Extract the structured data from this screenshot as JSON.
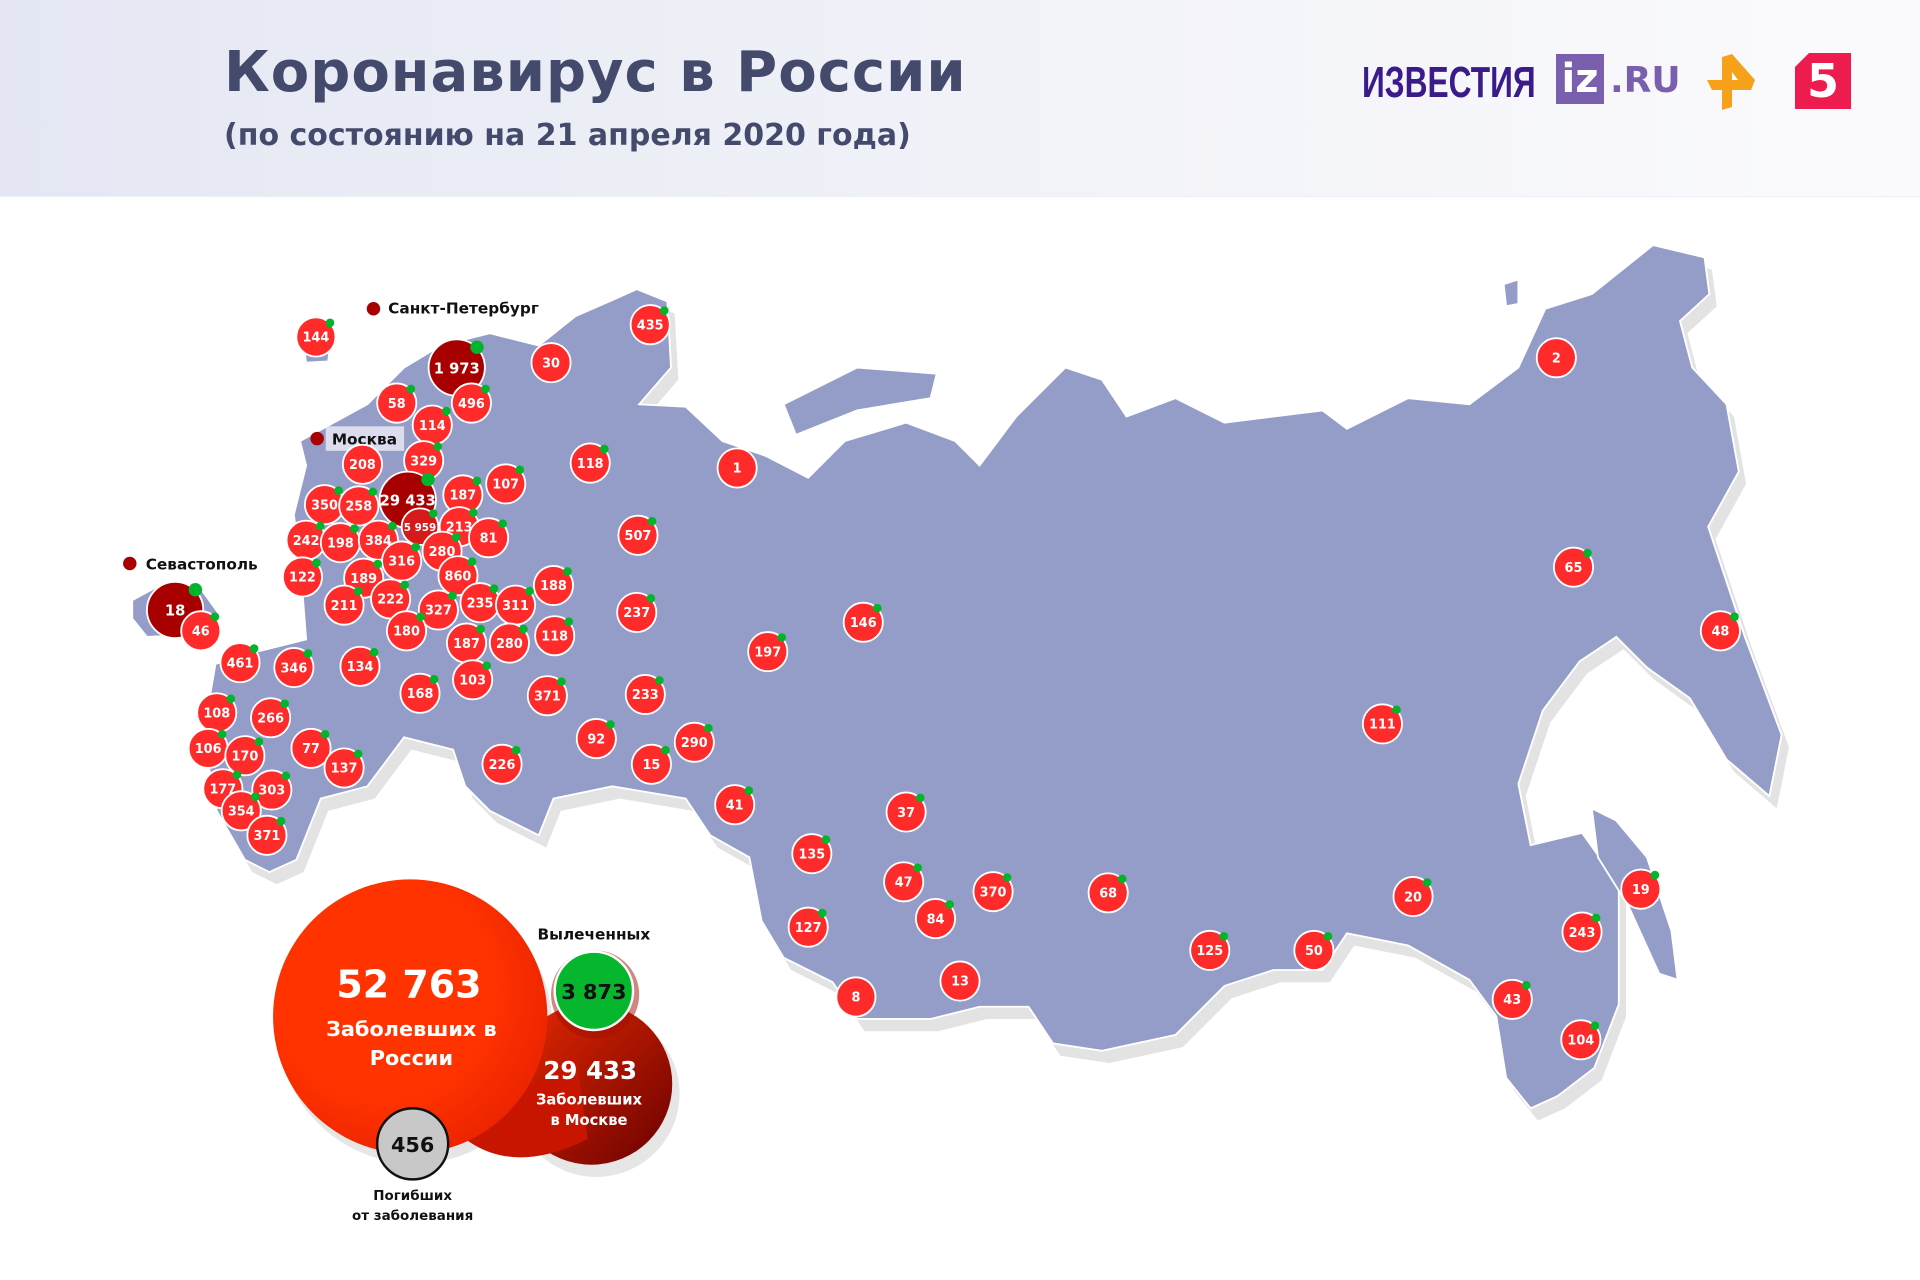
{
  "header": {
    "title": "Коронавирус в России",
    "subtitle": "(по состоянию на 21 апреля 2020 года)",
    "logos": {
      "izvestia": "ИЗВЕСТИЯ",
      "iz": "iz",
      "ru": ".RU",
      "ren": "ren-tv-logo",
      "five": "5"
    }
  },
  "colors": {
    "land": "#949dc8",
    "bubble": "#ff2a2a",
    "city_bubble": "#a80000",
    "recovered": "#00b52a",
    "deaths": "#c8c8c8"
  },
  "city_labels": {
    "spb": "Санкт-Петербург",
    "moscow": "Москва",
    "sevastopol": "Севастополь"
  },
  "regions": [
    {
      "cases": "144",
      "recovered_dot": true
    },
    {
      "cases": "1 973",
      "recovered_dot": true,
      "city": true
    },
    {
      "cases": "30",
      "recovered_dot": false
    },
    {
      "cases": "58",
      "recovered_dot": true
    },
    {
      "cases": "496",
      "recovered_dot": true
    },
    {
      "cases": "114",
      "recovered_dot": true
    },
    {
      "cases": "208",
      "recovered_dot": false
    },
    {
      "cases": "329",
      "recovered_dot": true
    },
    {
      "cases": "29 433",
      "recovered_dot": true,
      "city": true
    },
    {
      "cases": "350",
      "recovered_dot": true
    },
    {
      "cases": "258",
      "recovered_dot": true
    },
    {
      "cases": "187",
      "recovered_dot": true
    },
    {
      "cases": "107",
      "recovered_dot": true
    },
    {
      "cases": "118",
      "recovered_dot": true
    },
    {
      "cases": "5 959",
      "recovered_dot": true,
      "mid": true
    },
    {
      "cases": "213",
      "recovered_dot": true
    },
    {
      "cases": "81",
      "recovered_dot": true
    },
    {
      "cases": "242",
      "recovered_dot": true
    },
    {
      "cases": "198",
      "recovered_dot": true
    },
    {
      "cases": "384",
      "recovered_dot": true
    },
    {
      "cases": "280",
      "recovered_dot": true
    },
    {
      "cases": "316",
      "recovered_dot": true
    },
    {
      "cases": "860",
      "recovered_dot": true
    },
    {
      "cases": "122",
      "recovered_dot": true
    },
    {
      "cases": "189",
      "recovered_dot": true
    },
    {
      "cases": "188",
      "recovered_dot": true
    },
    {
      "cases": "211",
      "recovered_dot": true
    },
    {
      "cases": "222",
      "recovered_dot": true
    },
    {
      "cases": "327",
      "recovered_dot": true
    },
    {
      "cases": "235",
      "recovered_dot": true
    },
    {
      "cases": "311",
      "recovered_dot": true
    },
    {
      "cases": "18",
      "recovered_dot": true,
      "city": true
    },
    {
      "cases": "46",
      "recovered_dot": true
    },
    {
      "cases": "180",
      "recovered_dot": true
    },
    {
      "cases": "187",
      "recovered_dot": true
    },
    {
      "cases": "280",
      "recovered_dot": true
    },
    {
      "cases": "118",
      "recovered_dot": true
    },
    {
      "cases": "461",
      "recovered_dot": true
    },
    {
      "cases": "346",
      "recovered_dot": true
    },
    {
      "cases": "134",
      "recovered_dot": true
    },
    {
      "cases": "168",
      "recovered_dot": true
    },
    {
      "cases": "103",
      "recovered_dot": true
    },
    {
      "cases": "371",
      "recovered_dot": true
    },
    {
      "cases": "108",
      "recovered_dot": true
    },
    {
      "cases": "266",
      "recovered_dot": true
    },
    {
      "cases": "106",
      "recovered_dot": true
    },
    {
      "cases": "170",
      "recovered_dot": true
    },
    {
      "cases": "77",
      "recovered_dot": true
    },
    {
      "cases": "137",
      "recovered_dot": true
    },
    {
      "cases": "177",
      "recovered_dot": true
    },
    {
      "cases": "303",
      "recovered_dot": true
    },
    {
      "cases": "354",
      "recovered_dot": true
    },
    {
      "cases": "371",
      "recovered_dot": true
    },
    {
      "cases": "226",
      "recovered_dot": true
    },
    {
      "cases": "92",
      "recovered_dot": true
    },
    {
      "cases": "15",
      "recovered_dot": true
    },
    {
      "cases": "290",
      "recovered_dot": true
    },
    {
      "cases": "233",
      "recovered_dot": true
    },
    {
      "cases": "237",
      "recovered_dot": true
    },
    {
      "cases": "507",
      "recovered_dot": true
    },
    {
      "cases": "435",
      "recovered_dot": true
    },
    {
      "cases": "1",
      "recovered_dot": false
    },
    {
      "cases": "197",
      "recovered_dot": true
    },
    {
      "cases": "146",
      "recovered_dot": true
    },
    {
      "cases": "41",
      "recovered_dot": true
    },
    {
      "cases": "135",
      "recovered_dot": true
    },
    {
      "cases": "37",
      "recovered_dot": true
    },
    {
      "cases": "47",
      "recovered_dot": true
    },
    {
      "cases": "127",
      "recovered_dot": true
    },
    {
      "cases": "84",
      "recovered_dot": true
    },
    {
      "cases": "370",
      "recovered_dot": true
    },
    {
      "cases": "8",
      "recovered_dot": false
    },
    {
      "cases": "13",
      "recovered_dot": false
    },
    {
      "cases": "68",
      "recovered_dot": true
    },
    {
      "cases": "125",
      "recovered_dot": true
    },
    {
      "cases": "50",
      "recovered_dot": true
    },
    {
      "cases": "111",
      "recovered_dot": true
    },
    {
      "cases": "20",
      "recovered_dot": true
    },
    {
      "cases": "2",
      "recovered_dot": false
    },
    {
      "cases": "65",
      "recovered_dot": true
    },
    {
      "cases": "48",
      "recovered_dot": true
    },
    {
      "cases": "19",
      "recovered_dot": true
    },
    {
      "cases": "243",
      "recovered_dot": true
    },
    {
      "cases": "43",
      "recovered_dot": true
    },
    {
      "cases": "104",
      "recovered_dot": true
    }
  ],
  "summary": {
    "russia_cases": "52 763",
    "russia_label_1": "Заболевших в",
    "russia_label_2": "России",
    "recovered_title": "Вылеченных",
    "recovered": "3 873",
    "moscow_cases": "29 433",
    "moscow_label_1": "Заболевших",
    "moscow_label_2": "в Москве",
    "deaths": "456",
    "deaths_label_1": "Погибших",
    "deaths_label_2": "от заболевания"
  }
}
